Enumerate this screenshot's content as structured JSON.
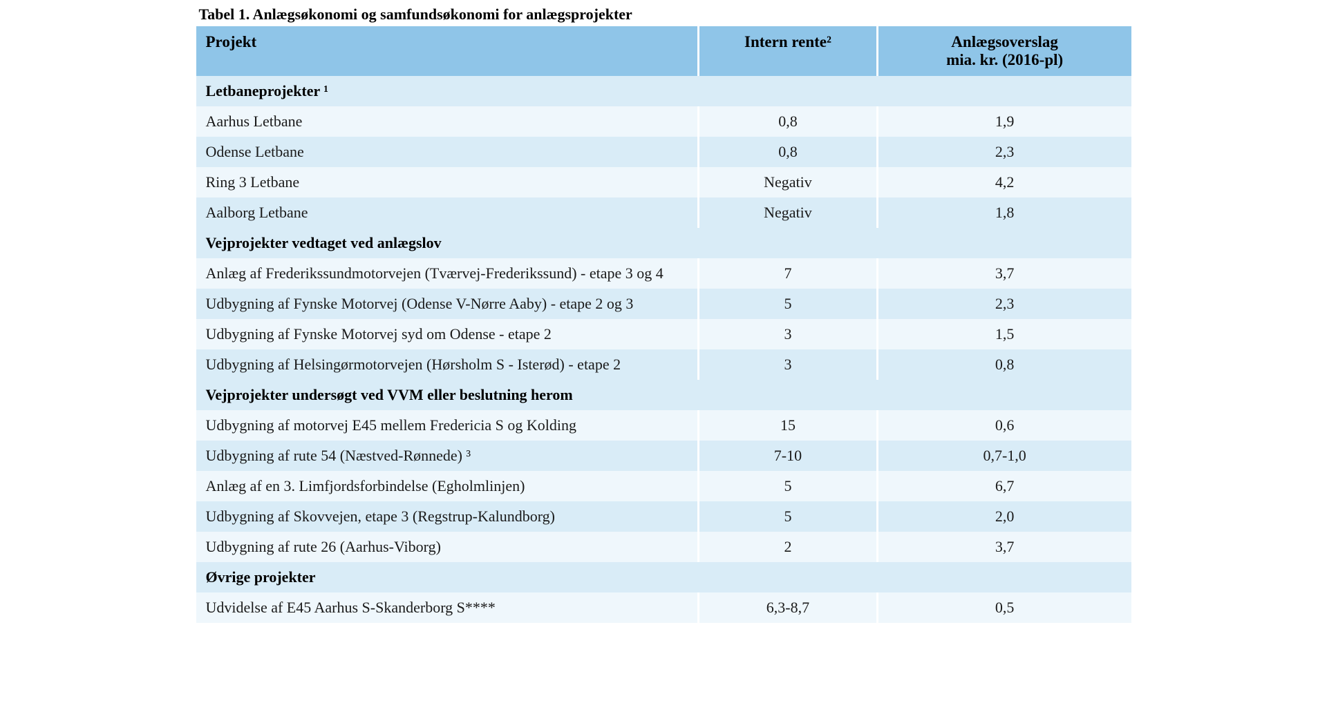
{
  "caption": "Tabel 1. Anlægsøkonomi og samfundsøkonomi for anlægsprojekter",
  "headers": {
    "projekt": "Projekt",
    "rente": "Intern rente²",
    "overslag_l1": "Anlægsoverslag",
    "overslag_l2": "mia. kr. (2016-pl)"
  },
  "sections": [
    {
      "title": "Letbaneprojekter ¹",
      "rows": [
        {
          "projekt": "Aarhus Letbane",
          "rente": "0,8",
          "overslag": "1,9"
        },
        {
          "projekt": "Odense Letbane",
          "rente": "0,8",
          "overslag": "2,3"
        },
        {
          "projekt": "Ring 3 Letbane",
          "rente": "Negativ",
          "overslag": "4,2"
        },
        {
          "projekt": "Aalborg Letbane",
          "rente": "Negativ",
          "overslag": "1,8"
        }
      ]
    },
    {
      "title": "Vejprojekter vedtaget ved anlægslov",
      "rows": [
        {
          "projekt": "Anlæg af Frederikssundmotorvejen (Tværvej-Frederikssund) - etape 3 og 4",
          "rente": "7",
          "overslag": "3,7"
        },
        {
          "projekt": "Udbygning af Fynske Motorvej (Odense V-Nørre Aaby) - etape 2 og 3",
          "rente": "5",
          "overslag": "2,3"
        },
        {
          "projekt": "Udbygning af Fynske Motorvej syd om Odense - etape 2",
          "rente": "3",
          "overslag": "1,5"
        },
        {
          "projekt": "Udbygning af Helsingørmotorvejen (Hørsholm S - Isterød) - etape 2",
          "rente": "3",
          "overslag": "0,8"
        }
      ]
    },
    {
      "title": "Vejprojekter undersøgt ved VVM eller beslutning herom",
      "rows": [
        {
          "projekt": "Udbygning af motorvej E45 mellem Fredericia S og Kolding",
          "rente": "15",
          "overslag": "0,6"
        },
        {
          "projekt": "Udbygning af rute 54 (Næstved-Rønnede) ³",
          "rente": "7-10",
          "overslag": "0,7-1,0"
        },
        {
          "projekt": "Anlæg af en 3. Limfjordsforbindelse (Egholmlinjen)",
          "rente": "5",
          "overslag": "6,7"
        },
        {
          "projekt": "Udbygning af Skovvejen, etape 3 (Regstrup-Kalundborg)",
          "rente": "5",
          "overslag": "2,0"
        },
        {
          "projekt": "Udbygning af rute 26 (Aarhus-Viborg)",
          "rente": "2",
          "overslag": "3,7"
        }
      ]
    },
    {
      "title": "Øvrige projekter",
      "rows": [
        {
          "projekt": "Udvidelse af E45 Aarhus S-Skanderborg S****",
          "rente": "6,3-8,7",
          "overslag": "0,5"
        }
      ]
    }
  ],
  "style": {
    "header_bg": "#8fc5e8",
    "row_light": "#eff7fc",
    "row_dark": "#d9ecf7",
    "border_color": "#ffffff",
    "font_family": "Georgia, 'Times New Roman', serif",
    "caption_fontsize": 22,
    "header_fontsize": 23,
    "cell_fontsize": 22
  }
}
